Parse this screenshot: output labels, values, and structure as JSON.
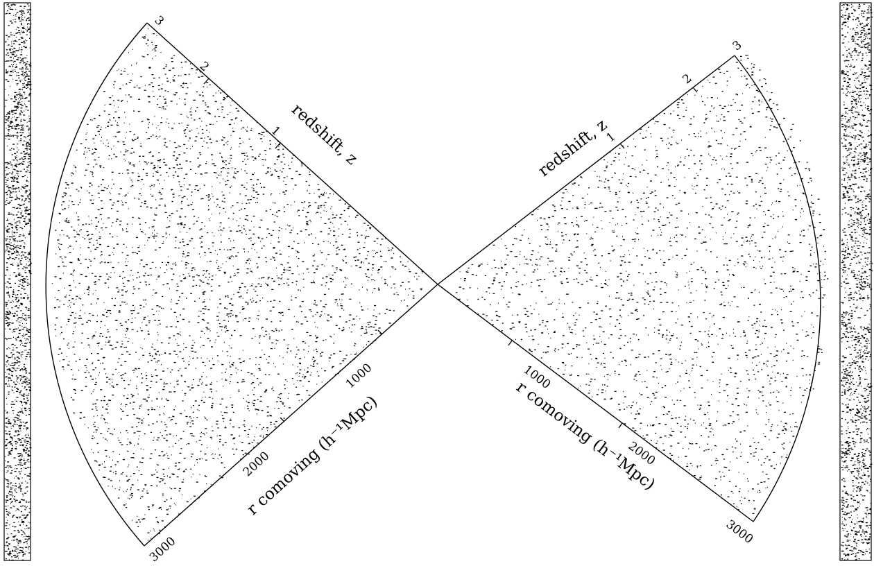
{
  "figure": {
    "ink_color": "#000000",
    "background_color": "#ffffff",
    "left_strip": {
      "content": "dense galaxy slice, clustered texture"
    },
    "right_strip": {
      "content": "dense galaxy slice, clustered texture"
    }
  },
  "left_cone": {
    "redshift_axis": {
      "title": "redshift, z",
      "ticks": [
        {
          "label": "1",
          "z": 1
        },
        {
          "label": "2",
          "z": 2
        },
        {
          "label": "3",
          "z": 3
        }
      ]
    },
    "distance_axis": {
      "title": "r comoving (h⁻¹Mpc)",
      "ticks": [
        {
          "label": "1000",
          "r": 1000
        },
        {
          "label": "2000",
          "r": 2000
        },
        {
          "label": "3000",
          "r": 3000
        }
      ]
    }
  },
  "right_cone": {
    "redshift_axis": {
      "title": "redshift, z",
      "ticks": [
        {
          "label": "1",
          "z": 1
        },
        {
          "label": "2",
          "z": 2
        },
        {
          "label": "3",
          "z": 3
        }
      ]
    },
    "distance_axis": {
      "title": "r comoving (h⁻¹Mpc)",
      "ticks": [
        {
          "label": "1000",
          "r": 1000
        },
        {
          "label": "2000",
          "r": 2000
        },
        {
          "label": "3000",
          "r": 3000
        }
      ]
    }
  }
}
